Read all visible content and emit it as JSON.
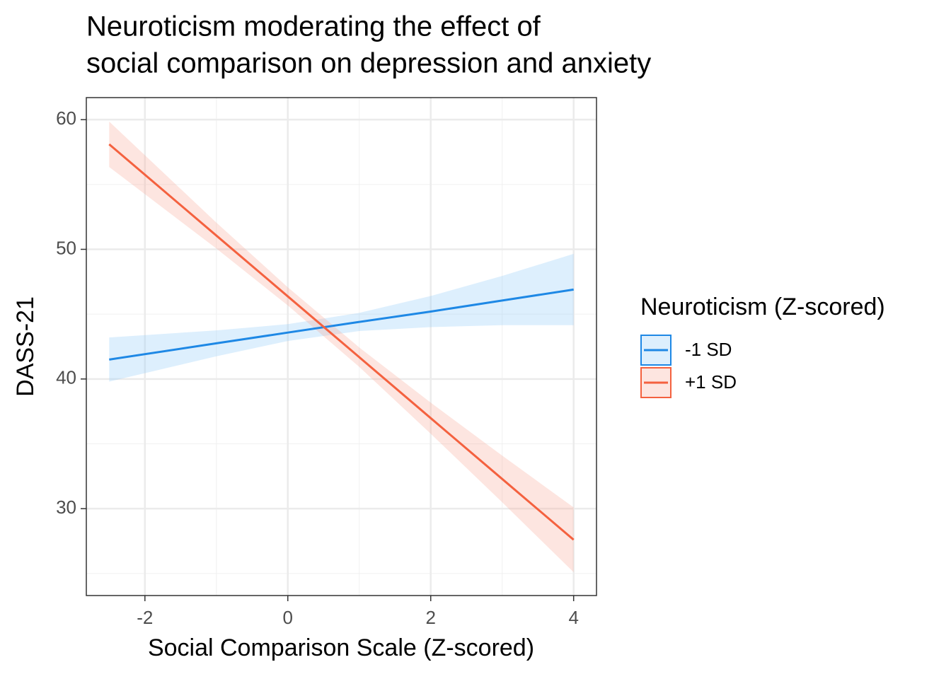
{
  "chart_data": {
    "type": "line",
    "title": [
      "Neuroticism moderating the effect of",
      "social comparison on depression and anxiety"
    ],
    "x_label": "Social Comparison Scale (Z-scored)",
    "y_label": "DASS-21",
    "x": [
      -2.5,
      -1,
      0,
      1,
      2,
      3,
      4
    ],
    "series": [
      {
        "name": "-1 SD",
        "color": "#1e88e5",
        "band_color": "#90caf9",
        "values": [
          41.5,
          42.75,
          43.58,
          44.4,
          45.2,
          46.05,
          46.9
        ],
        "lower": [
          39.8,
          41.75,
          42.93,
          43.7,
          44.0,
          44.15,
          44.15
        ],
        "upper": [
          43.2,
          43.75,
          44.23,
          45.1,
          46.4,
          47.95,
          49.65
        ]
      },
      {
        "name": "+1 SD",
        "color": "#f4613f",
        "band_color": "#f8a898",
        "values": [
          58.1,
          51.06,
          46.37,
          41.68,
          36.98,
          32.29,
          27.6
        ],
        "lower": [
          56.35,
          50.06,
          45.67,
          40.93,
          35.78,
          30.49,
          25.1
        ],
        "upper": [
          59.85,
          52.06,
          47.07,
          42.43,
          38.18,
          34.09,
          30.1
        ]
      }
    ],
    "xlim": [
      -2.82,
      4.32
    ],
    "ylim": [
      23.3,
      61.7
    ],
    "xticks": [
      -2,
      0,
      2,
      4
    ],
    "yticks": [
      30,
      40,
      50,
      60
    ],
    "xminor": [
      -1,
      1,
      3
    ],
    "yminor": [
      25,
      35,
      45,
      55
    ],
    "grid": true,
    "legend_title": "Neuroticism (Z-scored)",
    "legend_position": "right"
  }
}
